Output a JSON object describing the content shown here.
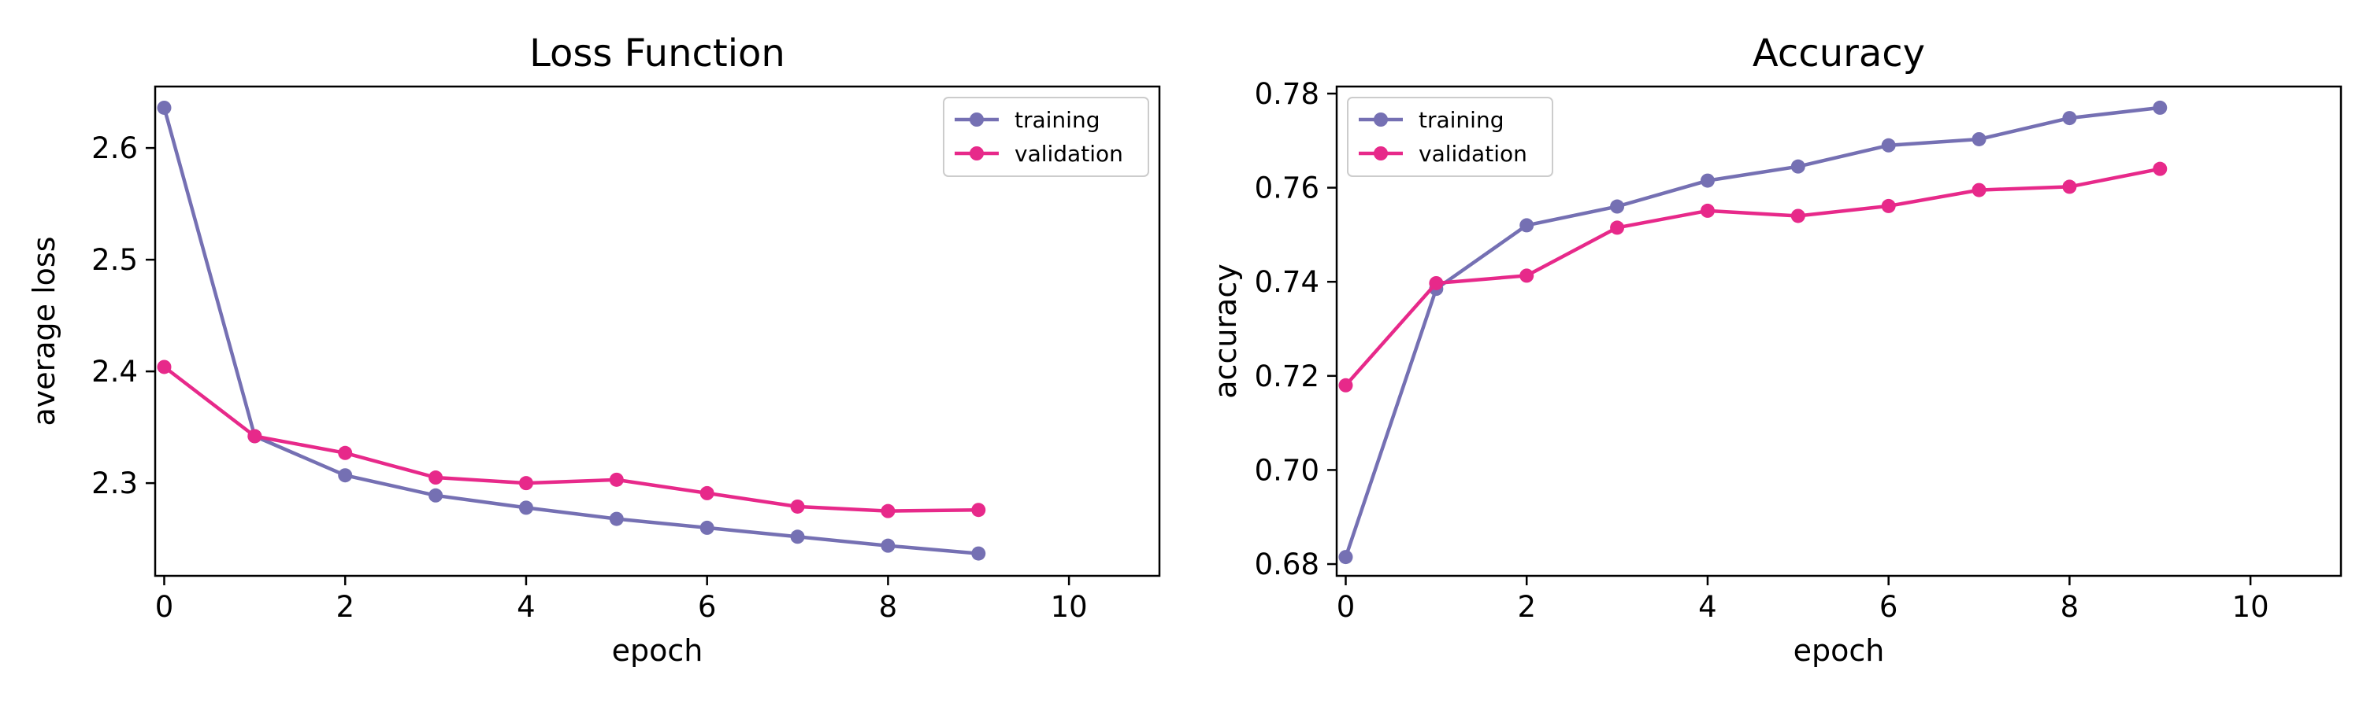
{
  "colors": {
    "training": "#7570b3",
    "validation": "#e7298a",
    "legend_frame": "#cccccc"
  },
  "chart_data": [
    {
      "type": "line",
      "title": "Loss Function",
      "xlabel": "epoch",
      "ylabel": "average loss",
      "xlim": [
        -0.1,
        11
      ],
      "ylim": [
        2.217,
        2.655
      ],
      "xticks": [
        0,
        2,
        4,
        6,
        8,
        10
      ],
      "yticks": [
        2.3,
        2.4,
        2.5,
        2.6
      ],
      "ytick_labels": [
        "2.3",
        "2.4",
        "2.5",
        "2.6"
      ],
      "grid": false,
      "legend_position": "top-right",
      "x": [
        0,
        1,
        2,
        3,
        4,
        5,
        6,
        7,
        8,
        9
      ],
      "series": [
        {
          "name": "training",
          "values": [
            2.636,
            2.342,
            2.307,
            2.289,
            2.278,
            2.268,
            2.26,
            2.252,
            2.244,
            2.237
          ]
        },
        {
          "name": "validation",
          "values": [
            2.404,
            2.342,
            2.327,
            2.305,
            2.3,
            2.303,
            2.291,
            2.279,
            2.275,
            2.276
          ]
        }
      ]
    },
    {
      "type": "line",
      "title": "Accuracy",
      "xlabel": "epoch",
      "ylabel": "accuracy",
      "xlim": [
        -0.1,
        11
      ],
      "ylim": [
        0.6775,
        0.7815
      ],
      "xticks": [
        0,
        2,
        4,
        6,
        8,
        10
      ],
      "yticks": [
        0.68,
        0.7,
        0.72,
        0.74,
        0.76,
        0.78
      ],
      "ytick_labels": [
        "0.68",
        "0.70",
        "0.72",
        "0.74",
        "0.76",
        "0.78"
      ],
      "grid": false,
      "legend_position": "top-left",
      "x": [
        0,
        1,
        2,
        3,
        4,
        5,
        6,
        7,
        8,
        9
      ],
      "series": [
        {
          "name": "training",
          "values": [
            0.6815,
            0.7385,
            0.752,
            0.756,
            0.7615,
            0.7645,
            0.769,
            0.7703,
            0.7748,
            0.777
          ]
        },
        {
          "name": "validation",
          "values": [
            0.718,
            0.7397,
            0.7413,
            0.7515,
            0.7551,
            0.754,
            0.7561,
            0.7595,
            0.7602,
            0.764
          ]
        }
      ]
    }
  ]
}
